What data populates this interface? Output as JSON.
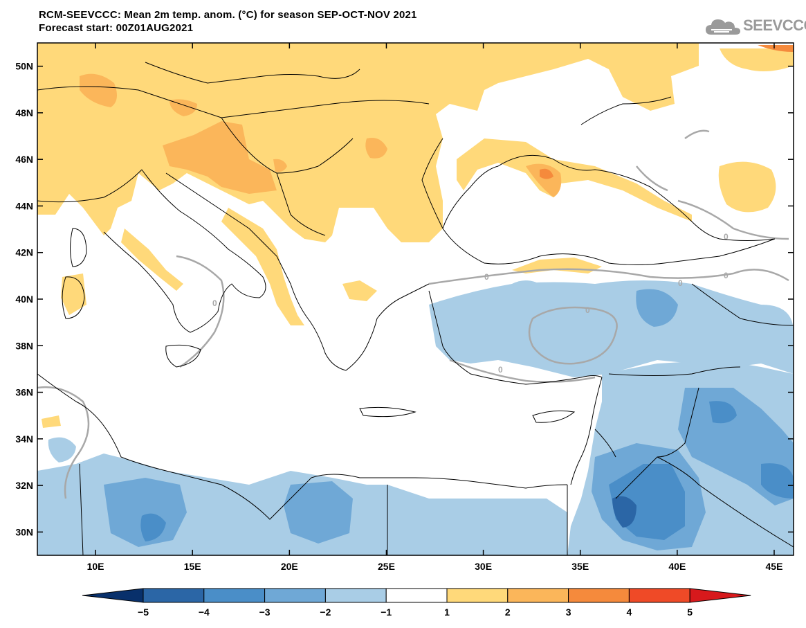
{
  "header": {
    "title_line1": "RCM-SEEVCCC: Mean 2m temp. anom. (°C) for season SEP-OCT-NOV 2021",
    "title_line2": "Forecast start: 00Z01AUG2021"
  },
  "logo": {
    "text": "SEEVCCC",
    "icon": "cloud-icon"
  },
  "map": {
    "lon_range": [
      7,
      46
    ],
    "lat_range": [
      29,
      51
    ],
    "lat_ticks": [
      {
        "value": 50,
        "label": "50N"
      },
      {
        "value": 48,
        "label": "48N"
      },
      {
        "value": 46,
        "label": "46N"
      },
      {
        "value": 44,
        "label": "44N"
      },
      {
        "value": 42,
        "label": "42N"
      },
      {
        "value": 40,
        "label": "40N"
      },
      {
        "value": 38,
        "label": "38N"
      },
      {
        "value": 36,
        "label": "36N"
      },
      {
        "value": 34,
        "label": "34N"
      },
      {
        "value": 32,
        "label": "32N"
      },
      {
        "value": 30,
        "label": "30N"
      }
    ],
    "lon_ticks": [
      {
        "value": 10,
        "label": "10E"
      },
      {
        "value": 15,
        "label": "15E"
      },
      {
        "value": 20,
        "label": "20E"
      },
      {
        "value": 25,
        "label": "25E"
      },
      {
        "value": 30,
        "label": "30E"
      },
      {
        "value": 35,
        "label": "35E"
      },
      {
        "value": 40,
        "label": "40E"
      },
      {
        "value": 45,
        "label": "45E"
      }
    ],
    "contour_label": "0",
    "colors": {
      "c_m5": "#08306b",
      "c_m4": "#2b66a6",
      "c_m3": "#4a8ec8",
      "c_m2": "#6fa8d6",
      "c_m1": "#a9cde6",
      "c_0": "#ffffff",
      "c_1": "#ffd97a",
      "c_2": "#fbb65a",
      "c_3": "#f58a3c",
      "c_4": "#ef4a27",
      "c_5": "#d7191c",
      "contour": "#a8a8a8"
    }
  },
  "colorbar": {
    "labels": [
      "−5",
      "−4",
      "−3",
      "−2",
      "−1",
      "1",
      "2",
      "3",
      "4",
      "5"
    ],
    "colors": [
      "#08306b",
      "#2b66a6",
      "#4a8ec8",
      "#6fa8d6",
      "#a9cde6",
      "#ffffff",
      "#ffd97a",
      "#fbb65a",
      "#f58a3c",
      "#ef4a27",
      "#d7191c"
    ]
  }
}
